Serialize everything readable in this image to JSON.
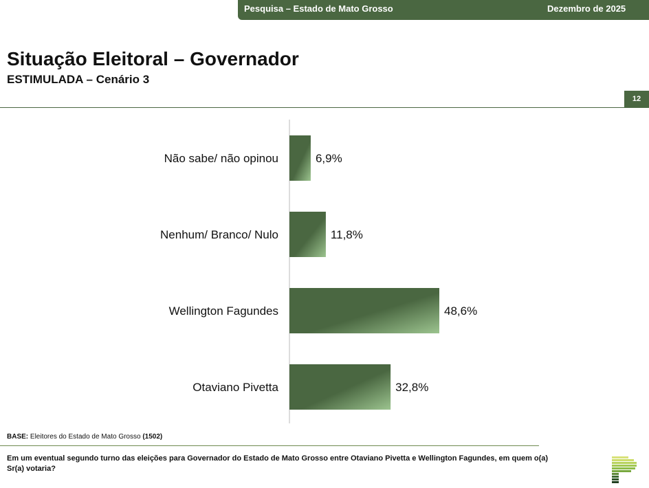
{
  "header": {
    "survey": "Pesquisa – Estado de Mato Grosso",
    "date": "Dezembro de 2025"
  },
  "title": "Situação Eleitoral – Governador",
  "subtitle": "ESTIMULADA – Cenário 3",
  "page_number": "12",
  "chart_data": {
    "type": "bar",
    "orientation": "horizontal",
    "categories": [
      "Não sabe/ não opinou",
      "Nenhum/ Branco/ Nulo",
      "Wellington Fagundes",
      "Otaviano Pivetta"
    ],
    "values": [
      6.9,
      11.8,
      48.6,
      32.8
    ],
    "labels": [
      "6,9%",
      "11,8%",
      "48,6%",
      "32,8%"
    ],
    "unit": "%",
    "xlim": [
      0,
      100
    ],
    "color": "#4a6741"
  },
  "footer": {
    "base_label": "BASE:",
    "base_text": "Eleitores do Estado de Mato Grosso",
    "base_count": "(1502)",
    "question": "Em um eventual segundo turno das eleições para Governador do Estado de Mato Grosso entre Otaviano Pivetta e Wellington Fagundes, em quem o(a) Sr(a) votaria?"
  }
}
